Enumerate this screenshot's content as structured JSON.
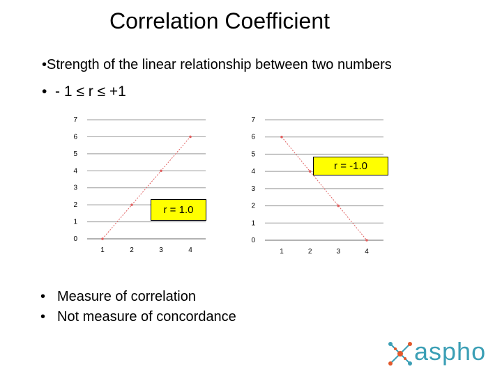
{
  "slide": {
    "title": "Correlation Coefficient",
    "bullets": [
      {
        "marker": "•",
        "text": "Strength of the linear relationship between two numbers"
      },
      {
        "marker": "•",
        "text": "- 1 ≤ r ≤ +1"
      }
    ],
    "bottom_bullets": [
      {
        "marker": "•",
        "text": "Measure of correlation"
      },
      {
        "marker": "•",
        "text": "Not measure of concordance"
      }
    ]
  },
  "logo": {
    "text": "aspho",
    "color": "#3b9fb5",
    "accent": "#e2582b"
  },
  "chart_data": [
    {
      "type": "line",
      "x": [
        1,
        2,
        3,
        4
      ],
      "series": [
        {
          "values": [
            0,
            2,
            4,
            6
          ],
          "color": "#e06060"
        }
      ],
      "xticks": [
        "1",
        "2",
        "3",
        "4"
      ],
      "yticks": [
        "0",
        "1",
        "2",
        "3",
        "4",
        "5",
        "6",
        "7"
      ],
      "ylim": [
        0,
        7
      ],
      "grid": "horizontal",
      "annotation": "r = 1.0",
      "annotation_color": "#ffff00"
    },
    {
      "type": "line",
      "x": [
        1,
        2,
        3,
        4
      ],
      "series": [
        {
          "values": [
            6,
            4,
            2,
            0
          ],
          "color": "#e06060"
        }
      ],
      "xticks": [
        "1",
        "2",
        "3",
        "4"
      ],
      "yticks": [
        "0",
        "1",
        "2",
        "3",
        "4",
        "5",
        "6",
        "7"
      ],
      "ylim": [
        0,
        7
      ],
      "grid": "horizontal",
      "annotation": "r = -1.0",
      "annotation_color": "#ffff00"
    }
  ]
}
